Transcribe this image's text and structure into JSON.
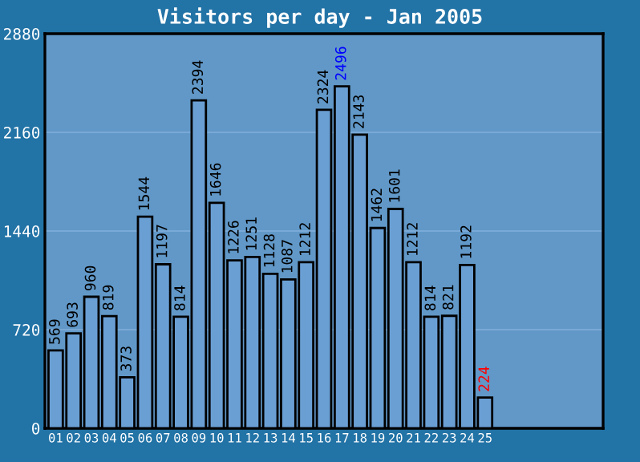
{
  "chart_data": {
    "type": "bar",
    "title": "Visitors per day - Jan 2005",
    "categories": [
      "01",
      "02",
      "03",
      "04",
      "05",
      "06",
      "07",
      "08",
      "09",
      "10",
      "11",
      "12",
      "13",
      "14",
      "15",
      "16",
      "17",
      "18",
      "19",
      "20",
      "21",
      "22",
      "23",
      "24",
      "25",
      null,
      null,
      null,
      null,
      null,
      null
    ],
    "values": [
      569,
      693,
      960,
      819,
      373,
      1544,
      1197,
      814,
      2394,
      1646,
      1226,
      1251,
      1128,
      1087,
      1212,
      2324,
      2496,
      2143,
      1462,
      1601,
      1212,
      814,
      821,
      1192,
      224,
      null,
      null,
      null,
      null,
      null,
      null
    ],
    "color": "#6a9fd4",
    "ylim": [
      0,
      2880
    ],
    "yticks": [
      0,
      720,
      1440,
      2160,
      2880
    ],
    "grid": "y",
    "data_labels": true
  }
}
